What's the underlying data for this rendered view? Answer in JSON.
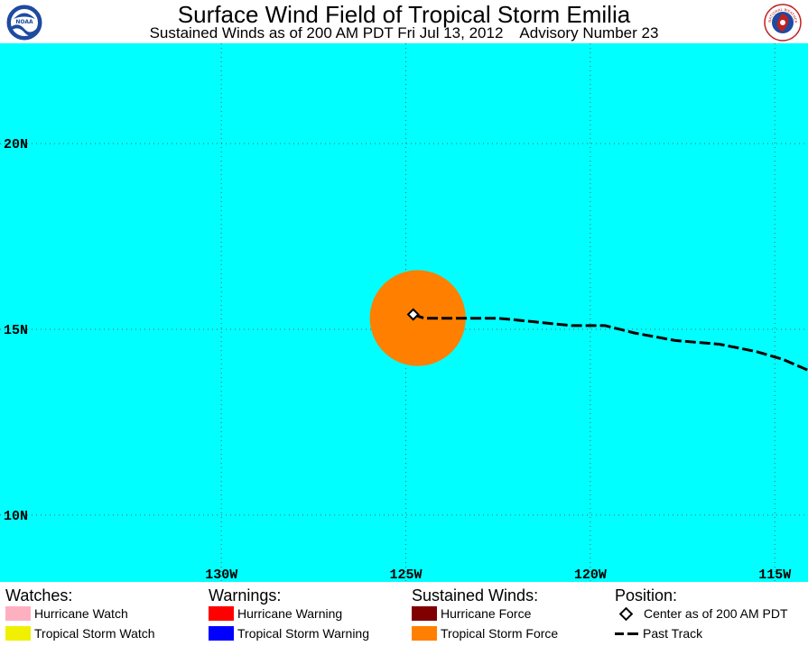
{
  "header": {
    "title": "Surface Wind Field of Tropical Storm Emilia",
    "subtitle": "Sustained Winds as of 200 AM PDT Fri Jul 13, 2012",
    "advisory": "Advisory Number 23",
    "noaa_logo_text": "NOAA",
    "nws_logo_text": "NATIONAL WEATHER SERVICE"
  },
  "map": {
    "lat_labels": [
      "20N",
      "15N",
      "10N"
    ],
    "lon_labels": [
      "130W",
      "125W",
      "120W",
      "115W"
    ],
    "lat_range": [
      8.2,
      22.7
    ],
    "lon_range": [
      -136,
      -114.1
    ],
    "grid_lats": [
      20,
      15,
      10
    ],
    "grid_lons": [
      -130,
      -125,
      -120,
      -115
    ],
    "storm_center": {
      "lat": 15.4,
      "lon": -124.8
    },
    "tropical_storm_wind_radius_deg": 1.3,
    "past_track": [
      [
        -124.8,
        15.4
      ],
      [
        -124.5,
        15.3
      ],
      [
        -123.5,
        15.3
      ],
      [
        -122.5,
        15.3
      ],
      [
        -121.5,
        15.2
      ],
      [
        -120.5,
        15.1
      ],
      [
        -119.6,
        15.1
      ],
      [
        -118.8,
        14.9
      ],
      [
        -117.7,
        14.7
      ],
      [
        -116.5,
        14.6
      ],
      [
        -115.5,
        14.4
      ],
      [
        -114.8,
        14.2
      ],
      [
        -114.1,
        13.9
      ]
    ],
    "colors": {
      "ocean": "#00ffff",
      "grid": "#606060",
      "ts_force": "#ff8000",
      "track": "#000000"
    }
  },
  "legend": {
    "watches_title": "Watches:",
    "warnings_title": "Warnings:",
    "winds_title": "Sustained Winds:",
    "position_title": "Position:",
    "hurricane_watch": "Hurricane Watch",
    "tropical_storm_watch": "Tropical Storm Watch",
    "hurricane_warning": "Hurricane Warning",
    "tropical_storm_warning": "Tropical Storm Warning",
    "hurricane_force": "Hurricane Force",
    "tropical_storm_force": "Tropical Storm Force",
    "center": "Center as of 200 AM PDT",
    "past_track": "Past Track",
    "colors": {
      "hurricane_watch": "#ffb0c0",
      "tropical_storm_watch": "#f0f000",
      "hurricane_warning": "#ff0000",
      "tropical_storm_warning": "#0000ff",
      "hurricane_force": "#800000",
      "tropical_storm_force": "#ff8000"
    }
  }
}
